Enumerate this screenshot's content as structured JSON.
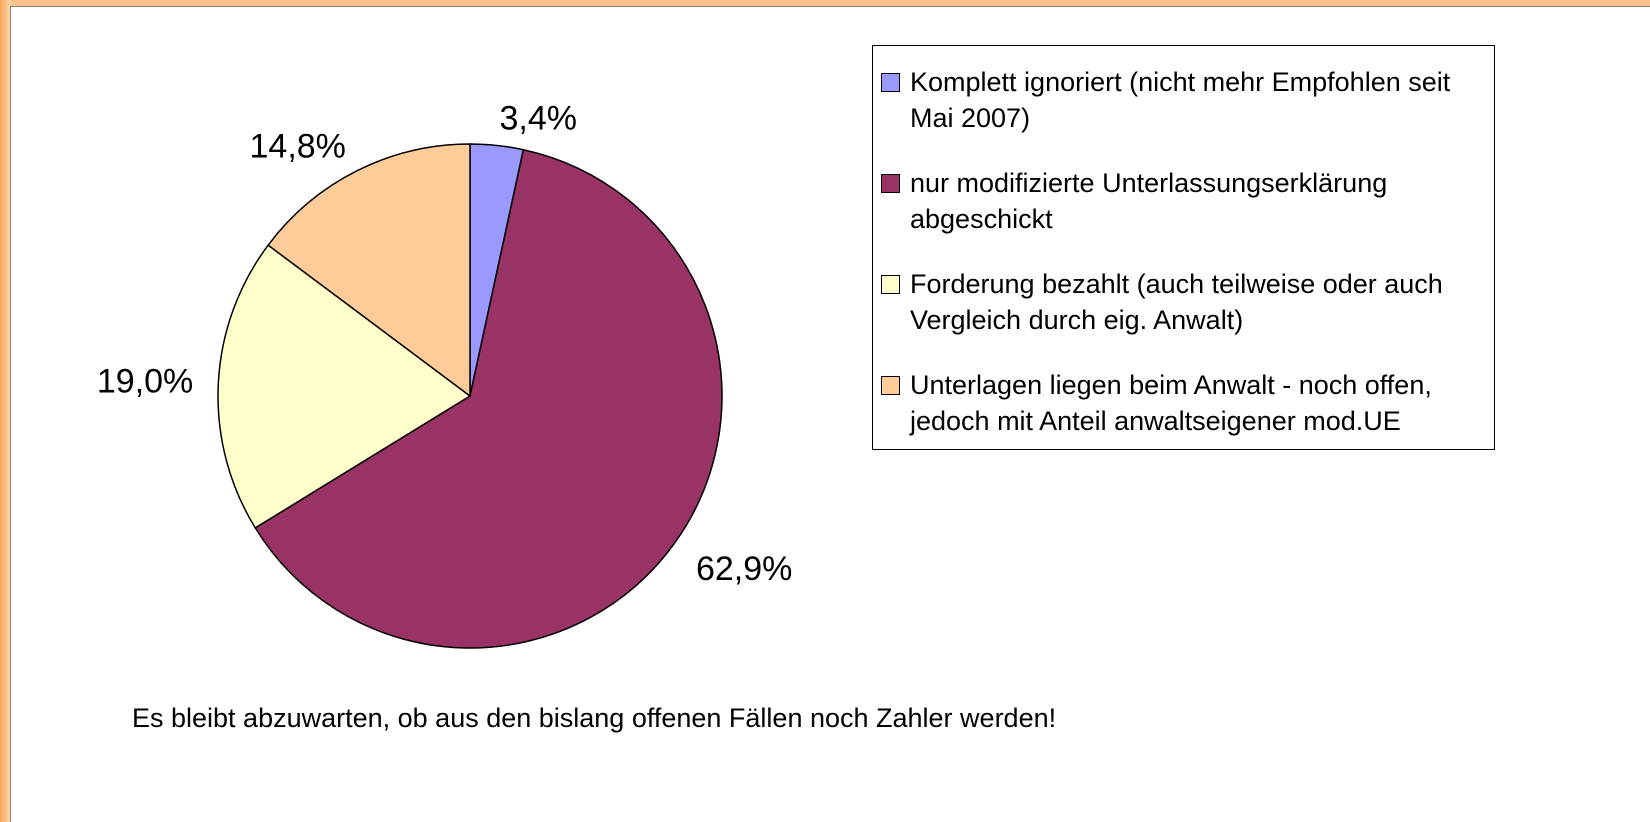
{
  "chart_data": {
    "type": "pie",
    "categories": [
      "Komplett ignoriert (nicht mehr Empfohlen seit Mai 2007)",
      "nur modifizierte Unterlassungserklärung abgeschickt",
      "Forderung bezahlt (auch teilweise oder auch Vergleich durch eig. Anwalt)",
      "Unterlagen liegen beim Anwalt - noch offen, jedoch mit Anteil anwaltseigener mod.UE"
    ],
    "values": [
      3.4,
      62.9,
      19.0,
      14.8
    ],
    "value_labels": [
      "3,4%",
      "62,9%",
      "19,0%",
      "14,8%"
    ],
    "colors": [
      "#9999ff",
      "#993366",
      "#ffffcc",
      "#ffcc99"
    ],
    "legend": "right",
    "annotation": "Es bleibt abzuwarten, ob aus den bislang offenen Fällen noch Zahler werden!"
  }
}
